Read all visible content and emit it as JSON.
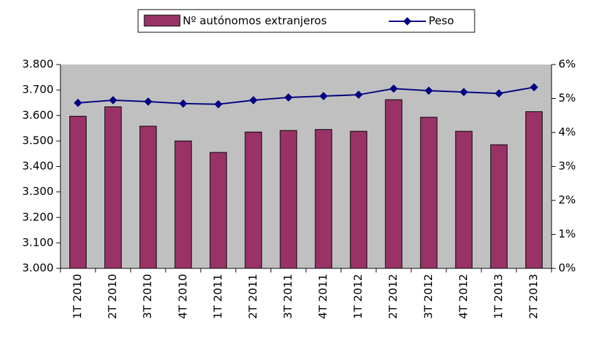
{
  "chart_data": {
    "type": "bar",
    "categories": [
      "1T 2010",
      "2T 2010",
      "3T 2010",
      "4T 2010",
      "1T 2011",
      "2T 2011",
      "3T 2011",
      "4T 2011",
      "1T 2012",
      "2T 2012",
      "3T 2012",
      "4T 2012",
      "1T 2013",
      "2T 2013"
    ],
    "series": [
      {
        "name": "Nº autónomos extranjeros",
        "type": "bar",
        "color": "#993366",
        "values": [
          3597,
          3634,
          3558,
          3500,
          3455,
          3535,
          3541,
          3545,
          3538,
          3662,
          3593,
          3538,
          3485,
          3615
        ]
      },
      {
        "name": "Peso",
        "type": "line",
        "axis": "y2",
        "color": "#000080",
        "values": [
          4.87,
          4.95,
          4.91,
          4.85,
          4.83,
          4.95,
          5.03,
          5.07,
          5.11,
          5.29,
          5.23,
          5.19,
          5.15,
          5.33
        ]
      }
    ],
    "ylim": [
      3000,
      3800
    ],
    "yticks": [
      {
        "value": 3000,
        "label": "3.000"
      },
      {
        "value": 3100,
        "label": "3.100"
      },
      {
        "value": 3200,
        "label": "3.200"
      },
      {
        "value": 3300,
        "label": "3.300"
      },
      {
        "value": 3400,
        "label": "3.400"
      },
      {
        "value": 3500,
        "label": "3.500"
      },
      {
        "value": 3600,
        "label": "3.600"
      },
      {
        "value": 3700,
        "label": "3.700"
      },
      {
        "value": 3800,
        "label": "3.800"
      }
    ],
    "y2lim": [
      0,
      6
    ],
    "y2ticks": [
      {
        "value": 0,
        "label": "0%"
      },
      {
        "value": 1,
        "label": "1%"
      },
      {
        "value": 2,
        "label": "2%"
      },
      {
        "value": 3,
        "label": "3%"
      },
      {
        "value": 4,
        "label": "4%"
      },
      {
        "value": 5,
        "label": "5%"
      },
      {
        "value": 6,
        "label": "6%"
      }
    ],
    "plot_background": "#c0c0c0",
    "legend": "top"
  }
}
